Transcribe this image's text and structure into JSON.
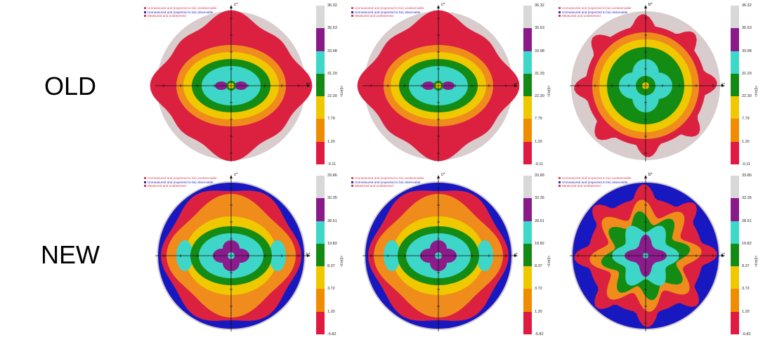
{
  "rows": [
    {
      "label": "OLD",
      "ticks": [
        "36.32",
        "35.53",
        "33.98",
        "31.29",
        "22.30",
        "7.79",
        "1.20",
        "-0.11"
      ],
      "panels": [
        {
          "x_axis_label": "b*",
          "y_axis_label": "c*",
          "variant": "ellipse"
        },
        {
          "x_axis_label": "a*",
          "y_axis_label": "c*",
          "variant": "ellipse"
        },
        {
          "x_axis_label": "a*",
          "y_axis_label": "b*",
          "variant": "star"
        }
      ]
    },
    {
      "label": "NEW",
      "ticks": [
        "33.86",
        "32.35",
        "28.51",
        "19.82",
        "8.37",
        "3.72",
        "1.20",
        "-5.82"
      ],
      "panels": [
        {
          "x_axis_label": "b*",
          "y_axis_label": "c*",
          "variant": "lobed"
        },
        {
          "x_axis_label": "a*",
          "y_axis_label": "c*",
          "variant": "lobed"
        },
        {
          "x_axis_label": "a*",
          "y_axis_label": "b*",
          "variant": "star-new"
        }
      ]
    }
  ],
  "legend": [
    {
      "text": "Unmeasured and (expected to be) unobservable",
      "color": "#d94a5e"
    },
    {
      "text": "Unmeasured and (expected to be) observable",
      "color": "#2a2ab5"
    },
    {
      "text": "Measured and unobserved",
      "color": "#e0324a"
    }
  ],
  "colorbar_title": "<I/σ(I)>",
  "colorbar_colors": [
    "#d8d8d8",
    "#8a1a8a",
    "#3ed8c8",
    "#138a13",
    "#f0c800",
    "#f08c00",
    "#e01a40"
  ],
  "colors": {
    "red": "#dc2040",
    "orange": "#f08c1c",
    "yellow": "#f0c800",
    "green": "#148c14",
    "cyan": "#3ed6c8",
    "purple": "#8c1c8c",
    "gray": "#d8cccc",
    "blue": "#1818c0"
  }
}
